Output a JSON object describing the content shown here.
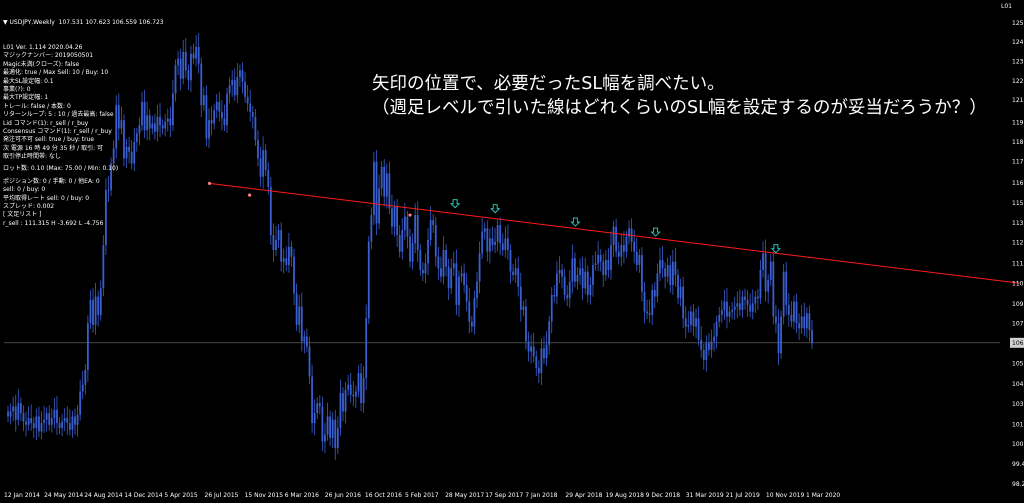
{
  "header": {
    "symbol_line": "▼ USDJPY,Weekly  107.531 107.623 106.559 106.723",
    "top_right_label": "L01"
  },
  "info_panel": {
    "lines": [
      "L01 Ver. 1.114 2020.04.26",
      "マジックナンバー: 2019050501",
      "Magic未満(クローズ): false",
      "最適化: true / Max Sell: 10 / Buy: 10",
      "最大SL設定幅: 0.1",
      "事業(?): 0",
      "最大TP設定幅: 1",
      "トレール: false / 本数: 0",
      "リターンループ: 5 : 10 / 過去最高: false",
      "Lid コマンド(1): r_sell / r_buy",
      "Consensus コマンド(1): r_sell / r_buy",
      "発注可不可 sell: true / buy: true",
      "次 電源 16 時 49 分 35 秒 / 取引: 可",
      "取引停止時間帯: なし",
      "ロット数: 0.10 (Max: 75.00 / Min: 0.10)",
      "ポジション数: 0 / 手動: 0 / 他EA: 0",
      "sell: 0 / buy: 0",
      "平均取得レート sell: 0 / buy: 0",
      "スプレッド: 0.002",
      "[ 文足リスト ]",
      "r_sell : 111.315 H -3.692 L -4.756"
    ]
  },
  "annotation": {
    "line1": "矢印の位置で、必要だったSL幅を調べたい。",
    "line2": "（週足レベルで引いた線はどれくらいのSL幅を設定するのが妥当だろうか？）"
  },
  "colors": {
    "background": "#000000",
    "candle": "#3a5fd0",
    "trendline": "#ff1a1a",
    "marker_arrow": "#2bd6c8",
    "price_line": "#6f6f6f",
    "axis_text": "#ffffff"
  },
  "chart_data": {
    "type": "candlestick",
    "symbol": "USDJPY",
    "timeframe": "Weekly",
    "current_price": "106.723",
    "y_ticks": [
      "125.950",
      "124.790",
      "123.630",
      "122.450",
      "121.310",
      "119.960",
      "118.790",
      "117.630",
      "116.320",
      "115.120",
      "113.910",
      "112.740",
      "111.490",
      "110.300",
      "109.070",
      "107.885",
      "106.723",
      "105.470",
      "104.245",
      "103.055",
      "101.830",
      "100.640",
      "99.435",
      "98.250"
    ],
    "y_tick_values": [
      125.95,
      124.79,
      123.63,
      122.45,
      121.31,
      119.96,
      118.79,
      117.63,
      116.32,
      115.12,
      113.91,
      112.74,
      111.49,
      110.3,
      109.07,
      107.885,
      105.47,
      104.245,
      103.055,
      101.83,
      100.64,
      99.435,
      98.25
    ],
    "ylim": [
      98.0,
      126.6
    ],
    "x_ticks": [
      "12 Jan 2014",
      "24 May 2014",
      "24 Aug 2014",
      "14 Dec 2014",
      "5 Apr 2015",
      "26 Jul 2015",
      "15 Nov 2015",
      "6 Mar 2016",
      "26 Jun 2016",
      "16 Oct 2016",
      "5 Feb 2017",
      "28 May 2017",
      "17 Sep 2017",
      "7 Jan 2018",
      "29 Apr 2018",
      "19 Aug 2018",
      "9 Dec 2018",
      "31 Mar 2019",
      "21 Jul 2019",
      "10 Nov 2019",
      "1 Mar 2020"
    ],
    "close_path": [
      102.3,
      102.6,
      102.9,
      102.1,
      103.1,
      102.5,
      102.0,
      101.8,
      102.2,
      101.9,
      101.6,
      102.3,
      101.4,
      101.9,
      102.1,
      102.5,
      101.8,
      102.2,
      102.7,
      101.9,
      101.6,
      102.0,
      102.2,
      101.9,
      101.5,
      102.3,
      101.8,
      102.4,
      103.8,
      104.2,
      105.1,
      107.9,
      109.3,
      107.8,
      109.5,
      108.4,
      110.0,
      112.6,
      115.9,
      115.9,
      117.5,
      118.4,
      121.0,
      119.6,
      120.1,
      117.8,
      118.5,
      118.2,
      117.5,
      118.8,
      119.3,
      119.8,
      121.2,
      119.5,
      120.4,
      119.6,
      119.9,
      119.4,
      120.3,
      119.8,
      119.6,
      120.0,
      120.2,
      119.8,
      121.7,
      123.4,
      123.8,
      122.6,
      124.2,
      123.1,
      122.5,
      124.1,
      123.8,
      124.5,
      123.5,
      121.0,
      121.6,
      119.0,
      120.1,
      119.9,
      120.7,
      121.2,
      120.6,
      120.2,
      119.8,
      121.7,
      122.2,
      122.5,
      121.6,
      122.7,
      123.1,
      122.4,
      121.5,
      121.1,
      120.6,
      120.3,
      118.9,
      117.8,
      116.7,
      118.3,
      117.1,
      116.1,
      113.2,
      112.3,
      112.9,
      113.5,
      111.6,
      111.8,
      111.4,
      112.5,
      111.9,
      109.7,
      107.8,
      108.9,
      106.8,
      107.1,
      106.5,
      104.7,
      101.9,
      102.5,
      103.1,
      102.9,
      100.8,
      101.2,
      102.3,
      101.0,
      102.1,
      100.4,
      101.6,
      103.7,
      102.6,
      103.9,
      104.2,
      103.6,
      103.5,
      103.8,
      104.9,
      103.1,
      104.6,
      108.2,
      112.8,
      114.4,
      117.6,
      113.9,
      116.0,
      117.3,
      115.5,
      116.9,
      114.8,
      113.7,
      114.9,
      113.2,
      112.2,
      113.5,
      114.3,
      113.1,
      111.6,
      112.7,
      114.4,
      112.3,
      111.1,
      110.9,
      111.5,
      112.9,
      114.1,
      113.8,
      111.9,
      111.2,
      110.7,
      112.3,
      111.3,
      110.0,
      111.2,
      111.5,
      109.0,
      110.7,
      110.9,
      110.2,
      109.2,
      108.0,
      107.7,
      109.4,
      110.4,
      112.1,
      113.4,
      113.6,
      112.2,
      113.0,
      112.6,
      112.8,
      113.8,
      112.7,
      112.3,
      113.0,
      112.3,
      111.0,
      110.8,
      111.2,
      110.1,
      108.7,
      108.9,
      106.8,
      106.2,
      106.5,
      105.9,
      105.2,
      104.9,
      106.4,
      105.8,
      106.6,
      108.0,
      109.6,
      109.5,
      110.9,
      111.1,
      110.7,
      109.6,
      109.4,
      110.4,
      111.8,
      110.4,
      110.8,
      111.2,
      110.0,
      111.0,
      109.6,
      110.2,
      111.4,
      111.5,
      112.0,
      111.6,
      110.8,
      111.7,
      111.1,
      112.6,
      113.7,
      112.2,
      111.9,
      112.6,
      112.2,
      113.1,
      113.6,
      112.8,
      112.2,
      111.4,
      112.0,
      109.8,
      108.6,
      108.5,
      108.4,
      109.9,
      109.5,
      110.9,
      111.7,
      111.2,
      110.7,
      111.4,
      110.2,
      111.6,
      110.8,
      109.4,
      110.1,
      108.2,
      107.7,
      107.8,
      108.6,
      107.7,
      108.2,
      106.9,
      106.3,
      105.7,
      106.7,
      106.3,
      106.8,
      107.1,
      108.0,
      108.4,
      108.7,
      109.2,
      108.3,
      108.6,
      108.7,
      108.9,
      109.1,
      108.7,
      109.5,
      109.3,
      109.0,
      108.6,
      109.1,
      109.5,
      109.4,
      111.1,
      112.1,
      109.8,
      110.5,
      111.6,
      108.3,
      107.9,
      106.1,
      108.3,
      111.0,
      109.0,
      108.4,
      108.0,
      109.2,
      107.9,
      107.6,
      108.3,
      107.6,
      108.5,
      107.5,
      106.7
    ],
    "trendline": {
      "x_start_tick": "26 Jul 2015",
      "y_start": 116.3,
      "y_end": 110.3
    },
    "marker_points_on_line": [
      {
        "x_tick": "26 Jul 2015",
        "y": 116.3
      },
      {
        "x_tick": "15 Nov 2015",
        "y": 115.6
      },
      {
        "x_tick": "5 Feb 2017",
        "y": 114.4
      }
    ],
    "arrow_markers": [
      {
        "x_tick": "28 May 2017",
        "y": 114.6
      },
      {
        "x_tick": "17 Sep 2017",
        "y": 114.3
      },
      {
        "x_tick": "29 Apr 2018",
        "y": 113.5
      },
      {
        "x_tick": "9 Dec 2018",
        "y": 112.9
      },
      {
        "x_tick": "10 Nov 2019",
        "y": 111.9
      }
    ],
    "grid": false
  }
}
